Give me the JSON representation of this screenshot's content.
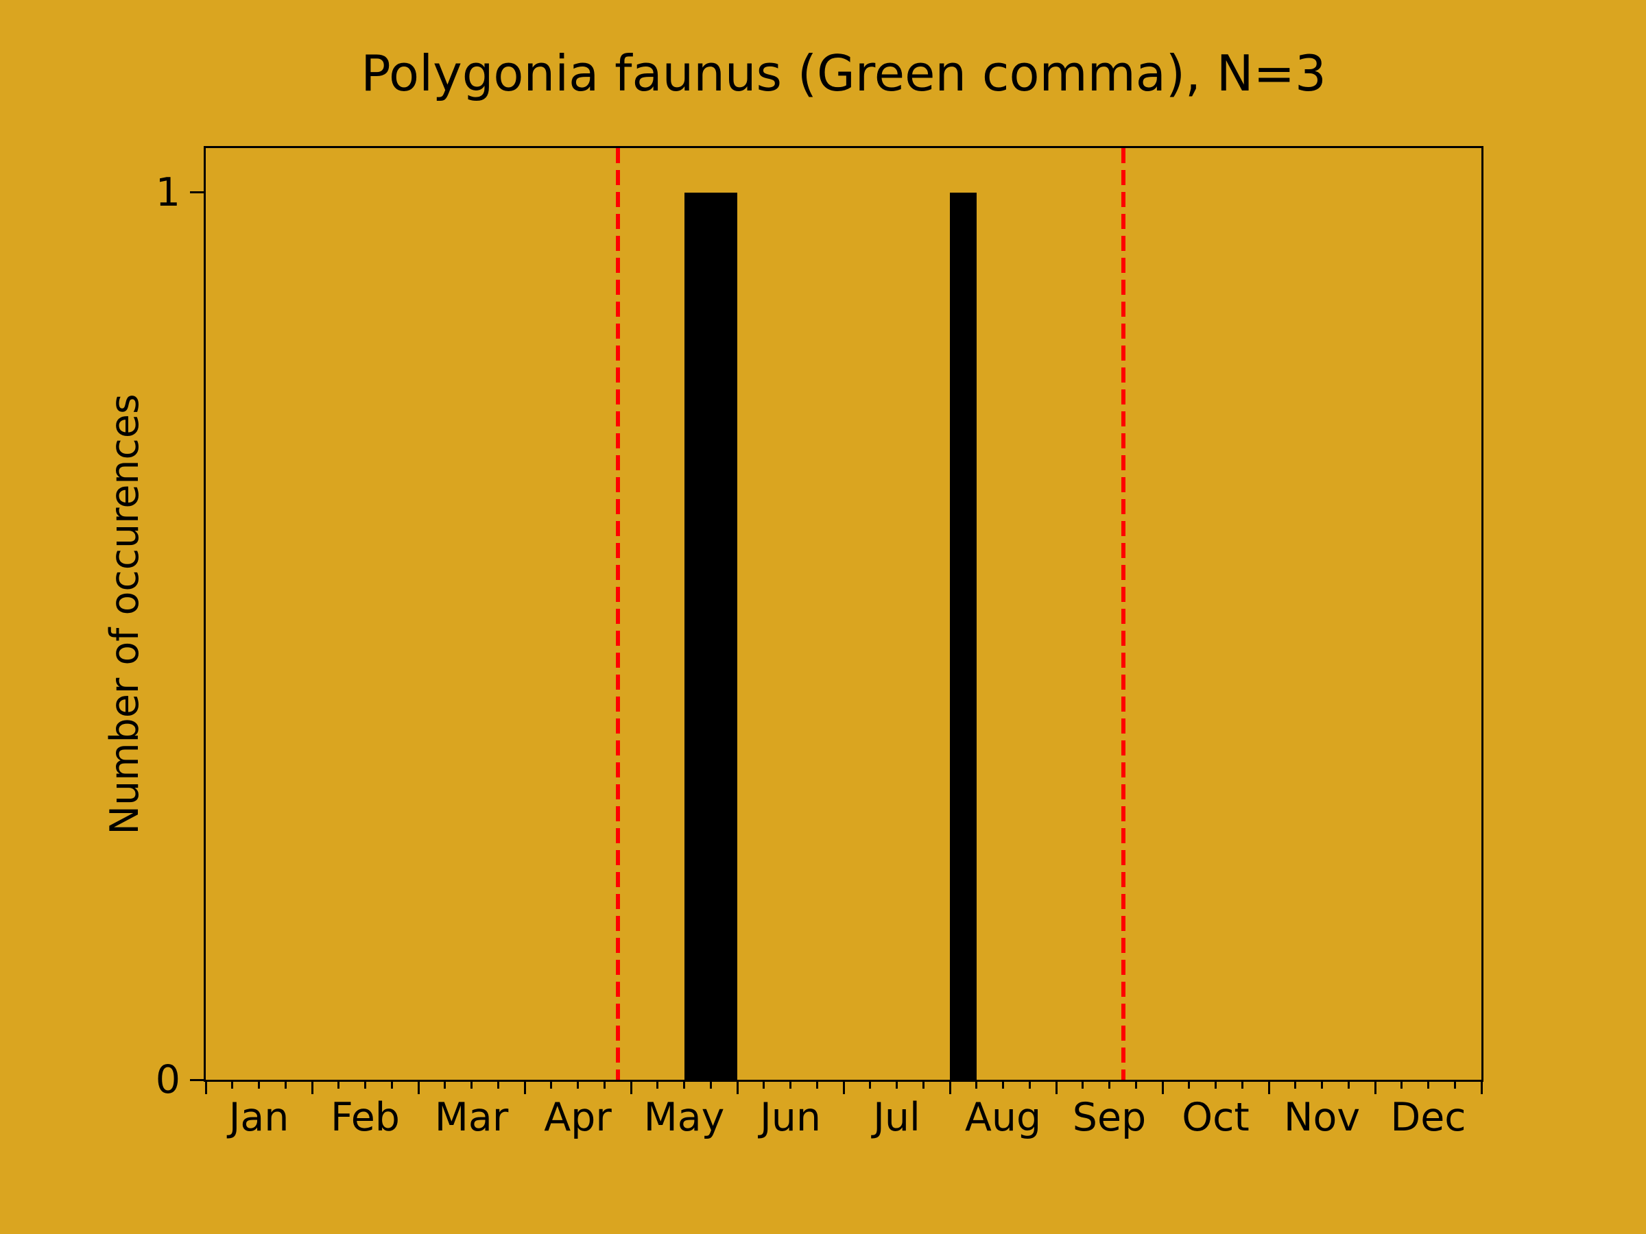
{
  "figure": {
    "background_color": "#DAA520"
  },
  "chart_data": {
    "type": "bar",
    "title": "Polygonia faunus (Green comma), N=3",
    "xlabel": "",
    "ylabel": "Number of occurences",
    "sample_size_n": 3,
    "categories": [
      "Jan",
      "Feb",
      "Mar",
      "Apr",
      "May",
      "Jun",
      "Jul",
      "Aug",
      "Sep",
      "Oct",
      "Nov",
      "Dec"
    ],
    "xlim_months": [
      0,
      12
    ],
    "ylim": [
      0,
      1.05
    ],
    "yticks": [
      0,
      1
    ],
    "x_minor_ticks_per_month": 4,
    "grid": false,
    "legend_visible": false,
    "bars": [
      {
        "x_start_month": 4.5,
        "x_end_month": 5.0,
        "value": 1
      },
      {
        "x_start_month": 7.0,
        "x_end_month": 7.25,
        "value": 1
      }
    ],
    "ref_lines": [
      {
        "x_month": 3.88,
        "style": "dashed"
      },
      {
        "x_month": 8.63,
        "style": "dashed"
      }
    ],
    "colors": {
      "background": "#DAA520",
      "bar": "#000000",
      "axis": "#000000",
      "text": "#000000",
      "ref_line": "#FF0000"
    }
  }
}
